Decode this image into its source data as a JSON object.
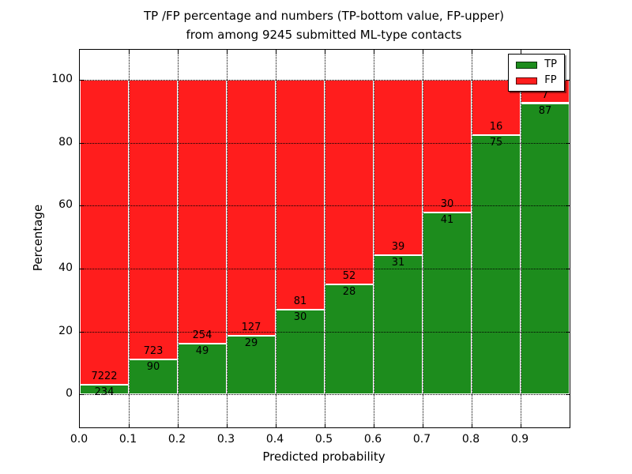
{
  "chart_data": {
    "type": "bar",
    "stacked": true,
    "normalized": "percent (each bin stacked to 100%)",
    "title_lines": [
      "TP /FP percentage and numbers (TP-bottom value, FP-upper)",
      "from among 9245 submitted ML-type contacts"
    ],
    "total_contacts": 9245,
    "categories": [
      "0.0",
      "0.1",
      "0.2",
      "0.3",
      "0.4",
      "0.5",
      "0.6",
      "0.7",
      "0.8",
      "0.9"
    ],
    "series": [
      {
        "name": "TP",
        "color": "#1d8c1d",
        "values": [
          234,
          90,
          49,
          29,
          30,
          28,
          31,
          41,
          75,
          87
        ]
      },
      {
        "name": "FP",
        "color": "#ff1d1d",
        "values": [
          7222,
          723,
          254,
          127,
          81,
          52,
          39,
          30,
          16,
          7
        ]
      }
    ],
    "tp_percent_per_bin": [
      3.1,
      11.1,
      16.2,
      18.6,
      27.0,
      35.0,
      44.3,
      57.7,
      82.4,
      92.6
    ],
    "xlabel": "Predicted probability",
    "ylabel": "Percentage",
    "x_ticks": [
      "0.0",
      "0.1",
      "0.2",
      "0.3",
      "0.4",
      "0.5",
      "0.6",
      "0.7",
      "0.8",
      "0.9"
    ],
    "y_ticks": [
      0,
      20,
      40,
      60,
      80,
      100
    ],
    "xlim": [
      0.0,
      1.0
    ],
    "ylim": [
      -10.5,
      109.5
    ],
    "grid": "dotted black, horizontal and vertical, drawn over bars",
    "bar_edge_color": "#ffffff",
    "legend": {
      "position": "upper right",
      "entries": [
        {
          "label": "TP",
          "color": "#1d8c1d"
        },
        {
          "label": "FP",
          "color": "#ff1d1d"
        }
      ]
    }
  }
}
